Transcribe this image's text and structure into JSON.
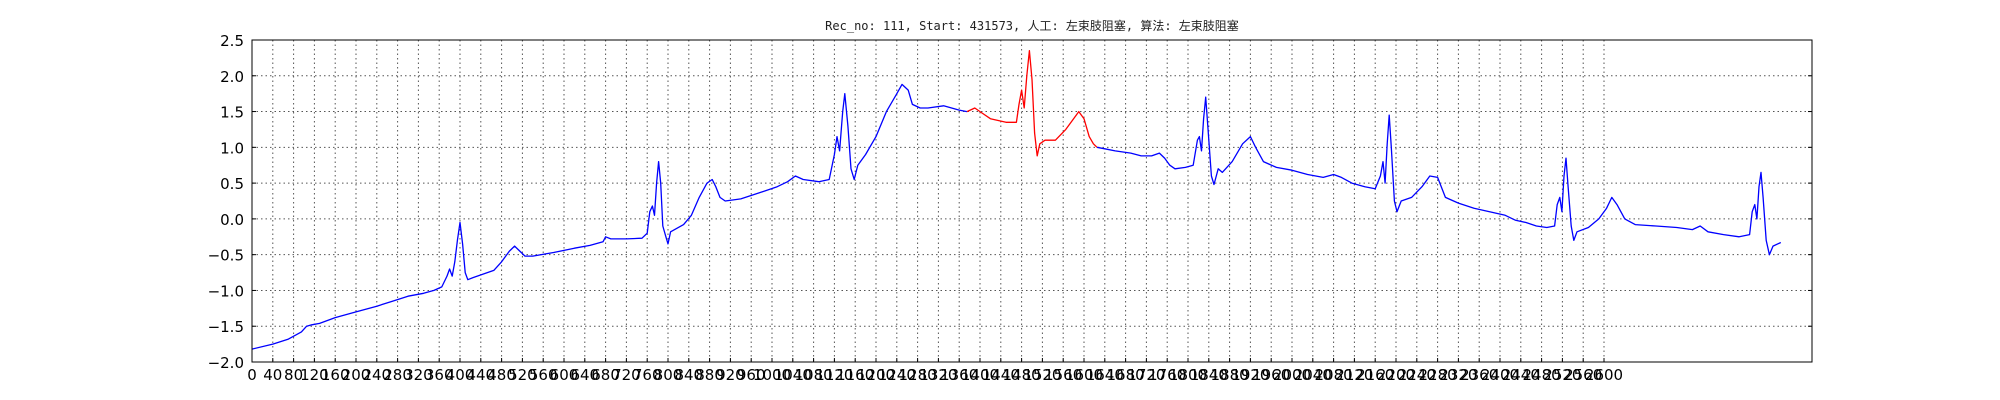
{
  "chart_data": {
    "type": "line",
    "title": "Rec_no: 111, Start: 431573, 人工: 左束肢阻塞, 算法: 左束肢阻塞",
    "xlabel": "",
    "ylabel": "",
    "xlim": [
      0,
      3000
    ],
    "ylim": [
      -2.0,
      2.5
    ],
    "grid": true,
    "x_ticks": [
      0,
      40,
      80,
      120,
      160,
      200,
      240,
      280,
      320,
      360,
      400,
      440,
      480,
      520,
      560,
      600,
      640,
      680,
      720,
      760,
      800,
      840,
      880,
      920,
      960,
      1000,
      1040,
      1080,
      1120,
      1160,
      1200,
      1240,
      1280,
      1320,
      1360,
      1400,
      1440,
      1480,
      1520,
      1560,
      1600,
      1640,
      1680,
      1720,
      1760,
      1800,
      1840,
      1880,
      1920,
      1960,
      2000,
      2040,
      2080,
      2120,
      2160,
      2200,
      2240,
      2280,
      2320,
      2360,
      2400,
      2440,
      2480,
      2520,
      2560,
      2600
    ],
    "y_ticks": [
      "2.5",
      "2.0",
      "1.5",
      "1.0",
      "0.5",
      "0.0",
      "−0.5",
      "−1.0",
      "−1.5",
      "−2.0"
    ],
    "series": [
      {
        "color": "#0000ff",
        "points": [
          [
            0,
            -1.82
          ],
          [
            40,
            -1.75
          ],
          [
            70,
            -1.68
          ],
          [
            95,
            -1.58
          ],
          [
            105,
            -1.5
          ],
          [
            115,
            -1.48
          ],
          [
            130,
            -1.46
          ],
          [
            160,
            -1.38
          ],
          [
            200,
            -1.3
          ],
          [
            240,
            -1.22
          ],
          [
            270,
            -1.15
          ],
          [
            300,
            -1.08
          ],
          [
            330,
            -1.04
          ],
          [
            350,
            -1.0
          ],
          [
            365,
            -0.95
          ],
          [
            375,
            -0.8
          ],
          [
            380,
            -0.7
          ],
          [
            385,
            -0.8
          ],
          [
            390,
            -0.6
          ],
          [
            395,
            -0.3
          ],
          [
            400,
            -0.05
          ],
          [
            405,
            -0.35
          ],
          [
            410,
            -0.75
          ],
          [
            415,
            -0.85
          ],
          [
            425,
            -0.82
          ],
          [
            445,
            -0.77
          ],
          [
            465,
            -0.72
          ],
          [
            480,
            -0.6
          ],
          [
            495,
            -0.45
          ],
          [
            505,
            -0.38
          ],
          [
            515,
            -0.45
          ],
          [
            525,
            -0.52
          ],
          [
            540,
            -0.52
          ],
          [
            580,
            -0.47
          ],
          [
            620,
            -0.41
          ],
          [
            650,
            -0.37
          ],
          [
            675,
            -0.32
          ],
          [
            680,
            -0.25
          ],
          [
            690,
            -0.28
          ],
          [
            720,
            -0.28
          ],
          [
            750,
            -0.27
          ],
          [
            760,
            -0.2
          ],
          [
            765,
            0.1
          ],
          [
            770,
            0.18
          ],
          [
            774,
            0.05
          ],
          [
            778,
            0.5
          ],
          [
            782,
            0.8
          ],
          [
            786,
            0.5
          ],
          [
            790,
            -0.1
          ],
          [
            796,
            -0.25
          ],
          [
            800,
            -0.35
          ],
          [
            805,
            -0.18
          ],
          [
            830,
            -0.08
          ],
          [
            845,
            0.05
          ],
          [
            860,
            0.3
          ],
          [
            875,
            0.5
          ],
          [
            885,
            0.55
          ],
          [
            892,
            0.45
          ],
          [
            900,
            0.3
          ],
          [
            910,
            0.25
          ],
          [
            940,
            0.28
          ],
          [
            970,
            0.35
          ],
          [
            1010,
            0.45
          ],
          [
            1030,
            0.52
          ],
          [
            1045,
            0.6
          ],
          [
            1060,
            0.55
          ],
          [
            1090,
            0.52
          ],
          [
            1110,
            0.55
          ],
          [
            1120,
            0.9
          ],
          [
            1125,
            1.15
          ],
          [
            1130,
            0.95
          ],
          [
            1136,
            1.5
          ],
          [
            1140,
            1.75
          ],
          [
            1146,
            1.3
          ],
          [
            1152,
            0.7
          ],
          [
            1158,
            0.55
          ],
          [
            1165,
            0.75
          ],
          [
            1180,
            0.9
          ],
          [
            1200,
            1.15
          ],
          [
            1220,
            1.5
          ],
          [
            1240,
            1.75
          ],
          [
            1250,
            1.88
          ],
          [
            1262,
            1.8
          ],
          [
            1270,
            1.6
          ],
          [
            1285,
            1.55
          ],
          [
            1300,
            1.55
          ],
          [
            1330,
            1.58
          ],
          [
            1360,
            1.52
          ],
          [
            1375,
            1.5
          ]
        ]
      },
      {
        "color": "#ff0000",
        "points": [
          [
            1375,
            1.5
          ],
          [
            1390,
            1.55
          ],
          [
            1400,
            1.5
          ],
          [
            1420,
            1.4
          ],
          [
            1450,
            1.35
          ],
          [
            1470,
            1.35
          ],
          [
            1475,
            1.6
          ],
          [
            1480,
            1.8
          ],
          [
            1485,
            1.55
          ],
          [
            1490,
            2.0
          ],
          [
            1495,
            2.35
          ],
          [
            1500,
            1.95
          ],
          [
            1505,
            1.2
          ],
          [
            1510,
            0.88
          ],
          [
            1515,
            1.05
          ],
          [
            1525,
            1.1
          ],
          [
            1545,
            1.1
          ],
          [
            1565,
            1.25
          ],
          [
            1580,
            1.4
          ],
          [
            1590,
            1.5
          ],
          [
            1600,
            1.4
          ],
          [
            1610,
            1.15
          ],
          [
            1618,
            1.05
          ],
          [
            1625,
            1.0
          ]
        ]
      },
      {
        "color": "#0000ff",
        "points": [
          [
            1625,
            1.0
          ],
          [
            1640,
            0.98
          ],
          [
            1660,
            0.95
          ],
          [
            1690,
            0.92
          ],
          [
            1710,
            0.88
          ],
          [
            1730,
            0.88
          ],
          [
            1745,
            0.92
          ],
          [
            1755,
            0.85
          ],
          [
            1765,
            0.75
          ],
          [
            1775,
            0.7
          ],
          [
            1795,
            0.72
          ],
          [
            1810,
            0.75
          ],
          [
            1818,
            1.1
          ],
          [
            1822,
            1.15
          ],
          [
            1826,
            0.95
          ],
          [
            1830,
            1.4
          ],
          [
            1834,
            1.7
          ],
          [
            1838,
            1.3
          ],
          [
            1845,
            0.6
          ],
          [
            1850,
            0.48
          ],
          [
            1858,
            0.7
          ],
          [
            1866,
            0.65
          ],
          [
            1885,
            0.8
          ],
          [
            1905,
            1.05
          ],
          [
            1920,
            1.15
          ],
          [
            1930,
            1.0
          ],
          [
            1945,
            0.8
          ],
          [
            1970,
            0.72
          ],
          [
            2000,
            0.68
          ],
          [
            2030,
            0.62
          ],
          [
            2060,
            0.58
          ],
          [
            2080,
            0.62
          ],
          [
            2095,
            0.58
          ],
          [
            2115,
            0.5
          ],
          [
            2140,
            0.45
          ],
          [
            2160,
            0.42
          ],
          [
            2170,
            0.6
          ],
          [
            2175,
            0.8
          ],
          [
            2179,
            0.5
          ],
          [
            2183,
            1.05
          ],
          [
            2187,
            1.45
          ],
          [
            2191,
            1.0
          ],
          [
            2197,
            0.25
          ],
          [
            2202,
            0.1
          ],
          [
            2210,
            0.25
          ],
          [
            2230,
            0.3
          ],
          [
            2250,
            0.45
          ],
          [
            2265,
            0.6
          ],
          [
            2280,
            0.58
          ],
          [
            2295,
            0.3
          ],
          [
            2320,
            0.22
          ],
          [
            2350,
            0.15
          ],
          [
            2380,
            0.1
          ],
          [
            2410,
            0.05
          ],
          [
            2430,
            -0.02
          ],
          [
            2450,
            -0.05
          ],
          [
            2470,
            -0.1
          ],
          [
            2490,
            -0.12
          ],
          [
            2505,
            -0.1
          ],
          [
            2510,
            0.2
          ],
          [
            2515,
            0.3
          ],
          [
            2519,
            0.1
          ],
          [
            2523,
            0.6
          ],
          [
            2527,
            0.85
          ],
          [
            2531,
            0.45
          ],
          [
            2537,
            -0.1
          ],
          [
            2542,
            -0.3
          ],
          [
            2548,
            -0.18
          ],
          [
            2570,
            -0.12
          ],
          [
            2590,
            0.0
          ],
          [
            2605,
            0.15
          ],
          [
            2615,
            0.3
          ],
          [
            2625,
            0.2
          ],
          [
            2640,
            0.0
          ],
          [
            2660,
            -0.08
          ],
          [
            2700,
            -0.1
          ],
          [
            2740,
            -0.12
          ],
          [
            2770,
            -0.15
          ],
          [
            2785,
            -0.1
          ],
          [
            2800,
            -0.18
          ],
          [
            2830,
            -0.22
          ],
          [
            2860,
            -0.25
          ],
          [
            2880,
            -0.22
          ],
          [
            2885,
            0.1
          ],
          [
            2890,
            0.2
          ],
          [
            2894,
            0.0
          ],
          [
            2898,
            0.45
          ],
          [
            2902,
            0.65
          ],
          [
            2906,
            0.3
          ],
          [
            2912,
            -0.3
          ],
          [
            2918,
            -0.5
          ],
          [
            2925,
            -0.38
          ],
          [
            2940,
            -0.33
          ]
        ]
      }
    ]
  }
}
